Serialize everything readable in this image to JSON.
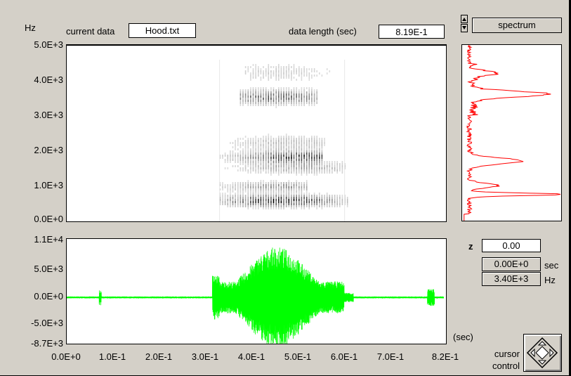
{
  "header": {
    "y_unit": "Hz",
    "current_data_label": "current data",
    "current_data_value": "Hood.txt",
    "data_length_label": "data length (sec)",
    "data_length_value": "8.19E-1",
    "view_mode": "spectrum"
  },
  "spectrogram": {
    "y_ticks": [
      "5.0E+3",
      "4.0E+3",
      "3.0E+3",
      "2.0E+3",
      "1.0E+3",
      "0.0E+0"
    ]
  },
  "waveform": {
    "y_ticks": [
      "1.1E+4",
      "5.0E+3",
      "0.0E+0",
      "-5.0E+3",
      "-8.7E+3"
    ],
    "x_ticks": [
      "0.0E+0",
      "1.0E-1",
      "2.0E-1",
      "3.0E-1",
      "4.0E-1",
      "5.0E-1",
      "6.0E-1",
      "7.0E-1",
      "8.2E-1"
    ],
    "x_unit": "(sec)",
    "color": "#00ff00"
  },
  "spectrum_color": "#ff0000",
  "cursor": {
    "z_label": "z",
    "z_value": "0.00",
    "time_value": "0.00E+0",
    "time_unit": "sec",
    "freq_value": "3.40E+3",
    "freq_unit": "Hz",
    "control_label_1": "cursor",
    "control_label_2": "control"
  },
  "chart_data": [
    {
      "type": "heatmap",
      "ylabel": "Hz",
      "ylim": [
        0,
        5000
      ],
      "xlim": [
        0,
        0.819
      ],
      "y_ticks": [
        0,
        1000,
        2000,
        3000,
        4000,
        5000
      ]
    },
    {
      "type": "line",
      "xlabel": "(sec)",
      "xlim": [
        0,
        0.82
      ],
      "ylim": [
        -8700,
        11000
      ],
      "x_ticks": [
        0,
        0.1,
        0.2,
        0.3,
        0.4,
        0.5,
        0.6,
        0.7,
        0.82
      ],
      "y_ticks": [
        -8700,
        -5000,
        0,
        5000,
        11000
      ]
    },
    {
      "type": "line",
      "title": "spectrum",
      "ylim": [
        0,
        5000
      ]
    }
  ]
}
